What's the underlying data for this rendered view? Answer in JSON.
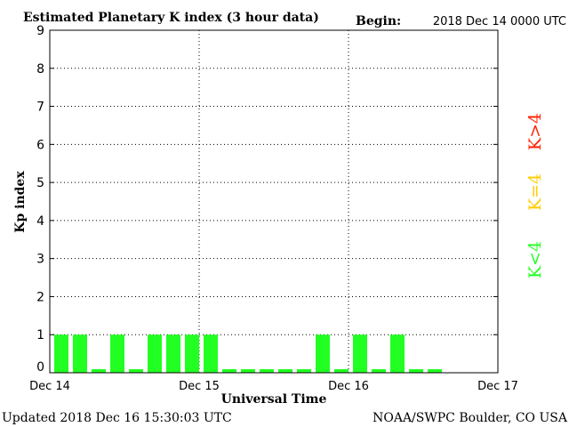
{
  "chart_data": {
    "type": "bar",
    "title": "Estimated Planetary K index (3 hour data)",
    "begin_label": "Begin:",
    "begin_value": "2018 Dec 14 0000 UTC",
    "xlabel": "Universal Time",
    "ylabel": "Kp index",
    "ylim": [
      0,
      9
    ],
    "yticks": [
      "0",
      "1",
      "2",
      "3",
      "4",
      "5",
      "6",
      "7",
      "8",
      "9"
    ],
    "xticks": [
      "Dec 14",
      "Dec 15",
      "Dec 16",
      "Dec 17"
    ],
    "xlim_hours": [
      0,
      72
    ],
    "bin_hours": 3,
    "values": [
      1,
      1,
      0,
      1,
      0,
      1,
      1,
      1,
      1,
      0,
      0,
      0,
      0,
      0,
      1,
      0,
      1,
      0,
      1,
      0,
      0
    ],
    "grid": true,
    "colors": {
      "low": "#22ff22",
      "mid": "#ffcc00",
      "high": "#ff2200",
      "frame": "#000000"
    },
    "legend": [
      {
        "label": "K>4",
        "color": "#ff2200"
      },
      {
        "label": "K=4",
        "color": "#ffcc00"
      },
      {
        "label": "K<4",
        "color": "#22ff22"
      }
    ]
  },
  "footer": {
    "updated": "Updated 2018 Dec 16 15:30:03 UTC",
    "source": "NOAA/SWPC Boulder, CO USA"
  }
}
